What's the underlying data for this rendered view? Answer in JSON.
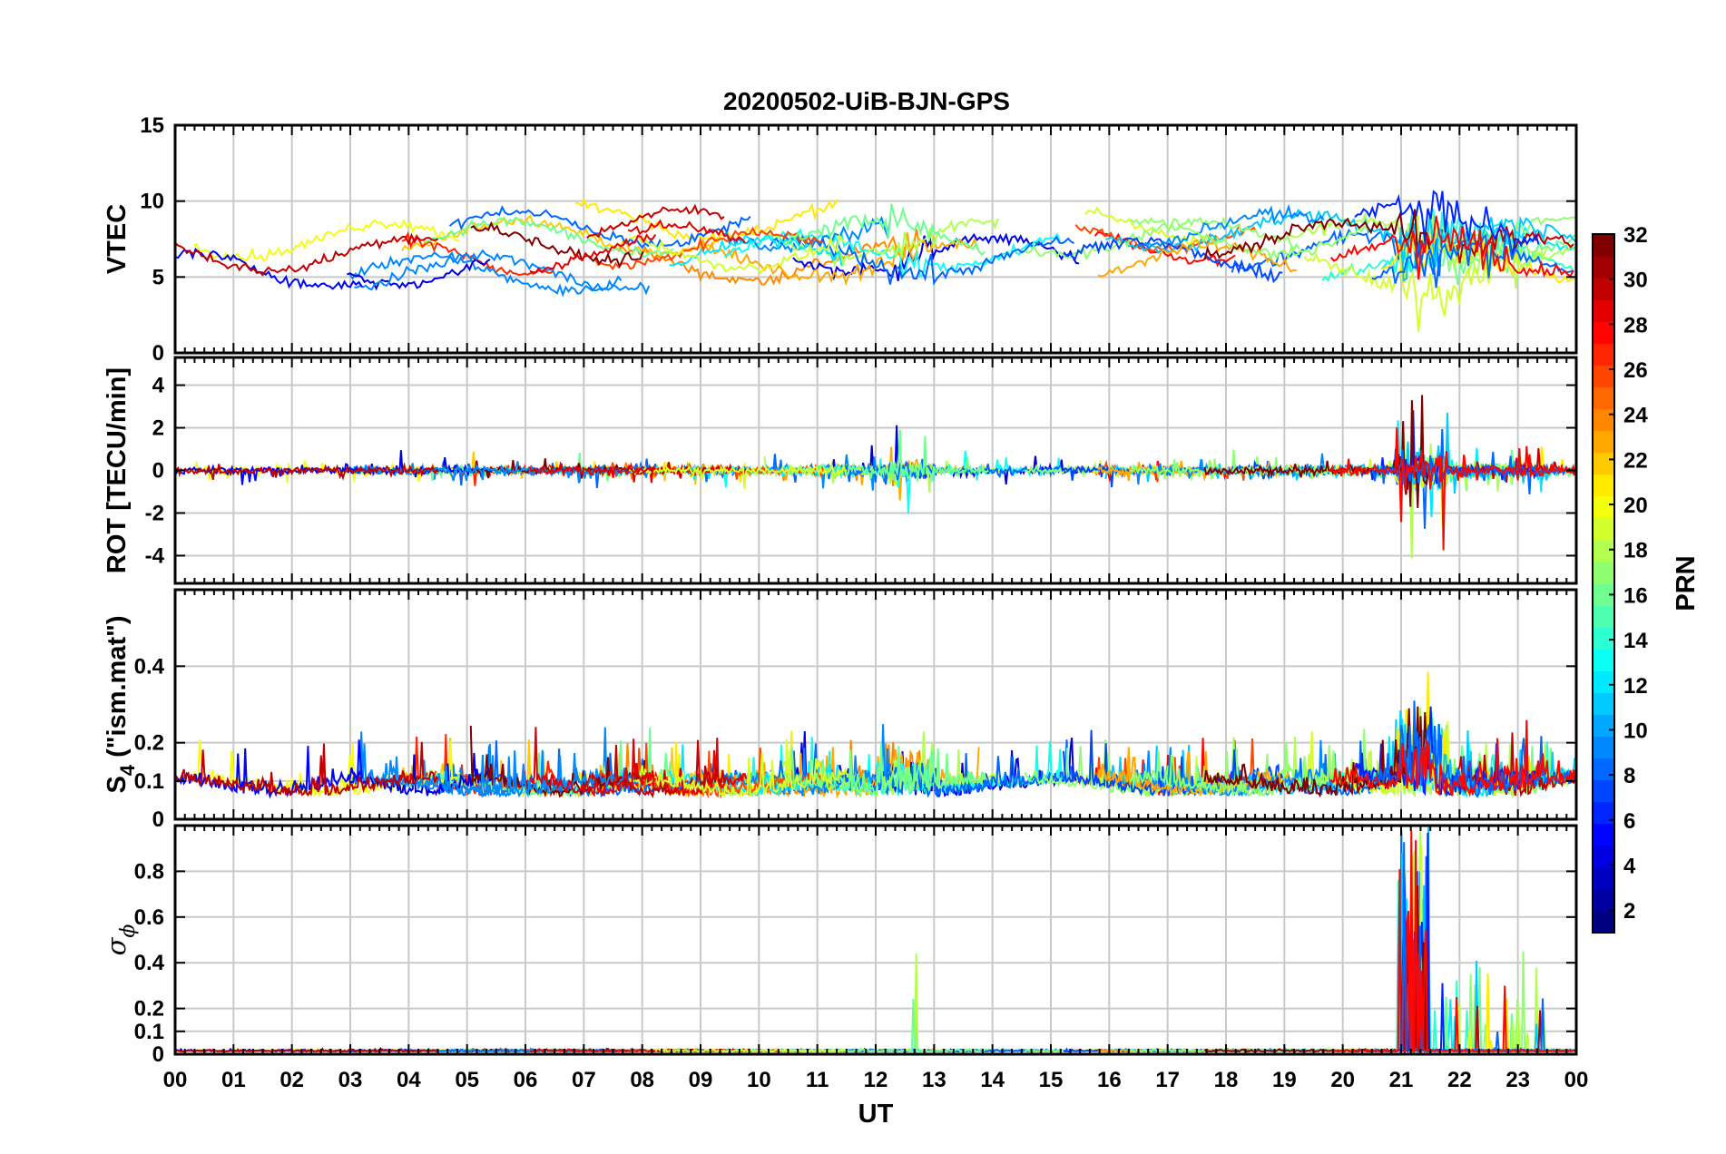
{
  "chart_data": [
    {
      "type": "line",
      "title": "20200502-UiB-BJN-GPS",
      "ylabel": "VTEC",
      "ylim": [
        0,
        15
      ],
      "yticks": [
        "0",
        "5",
        "10",
        "15"
      ],
      "grid": true,
      "series_note_values": {
        "baseline": 6.3,
        "range": [
          2.2,
          10.4
        ]
      }
    },
    {
      "type": "line",
      "ylabel": "ROT [TECU/min]",
      "ylim": [
        -5.3,
        5.3
      ],
      "yticks": [
        "-4",
        "-2",
        "0",
        "2",
        "4"
      ],
      "grid": true
    },
    {
      "type": "line",
      "ylabel": "S4 (\"ism.mat\")",
      "ylabel_parts": {
        "main": "S",
        "sub": "4",
        "rest": " (\"ism.mat\")"
      },
      "ylim": [
        0,
        0.6
      ],
      "yticks": [
        "0",
        "0.1",
        "0.2",
        "0.4"
      ],
      "grid": true
    },
    {
      "type": "line",
      "ylabel": "σ ϕ",
      "ylabel_parts": {
        "main": "σ",
        "sub": "ϕ"
      },
      "ylim": [
        0,
        1
      ],
      "yticks": [
        "0",
        "0.1",
        "0.2",
        "0.4",
        "0.6",
        "0.8"
      ],
      "grid": true,
      "xlabel": "UT",
      "xticks": [
        "00",
        "01",
        "02",
        "03",
        "04",
        "05",
        "06",
        "07",
        "08",
        "09",
        "10",
        "11",
        "12",
        "13",
        "14",
        "15",
        "16",
        "17",
        "18",
        "19",
        "20",
        "21",
        "22",
        "23",
        "00"
      ],
      "xlim_hours": [
        0,
        24
      ]
    }
  ],
  "colorbar": {
    "label": "PRN",
    "range": [
      1,
      32
    ],
    "ticks": [
      "2",
      "4",
      "6",
      "8",
      "10",
      "12",
      "14",
      "16",
      "18",
      "20",
      "22",
      "24",
      "26",
      "28",
      "30",
      "32"
    ],
    "colormap": "jet"
  }
}
